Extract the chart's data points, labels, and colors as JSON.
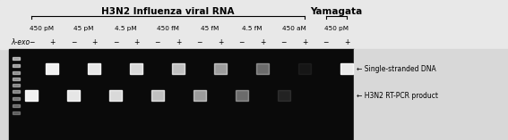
{
  "title_h3n2": "H3N2 Influenza viral RNA",
  "title_yamagata": "Yamagata",
  "concentrations_h3n2": [
    "450 pM",
    "45 pM",
    "4.5 pM",
    "450 fM",
    "45 fM",
    "4.5 fM",
    "450 aM"
  ],
  "concentrations_yamagata": [
    "450 pM"
  ],
  "lambda_exo_label": "λ-exo",
  "ann1": "← Single-stranded DNA",
  "ann2": "← H3N2 RT-PCR product",
  "fig_bg": "#d8d8d8",
  "gel_bg": "#0a0a0a",
  "header_bg": "#e8e8e8",
  "band_color_bright": "#ffffff",
  "pair_intensities_upper": [
    0.95,
    0.9,
    0.85,
    0.75,
    0.6,
    0.4,
    0.05,
    0.0
  ],
  "pair_intensities_lower": [
    0.95,
    0.9,
    0.85,
    0.75,
    0.6,
    0.4,
    0.1,
    0.0
  ],
  "yamagata_upper_intensity": 0.92,
  "yamagata_lower_intensity": 0.0,
  "ladder_alphas": [
    0.6,
    0.55,
    0.5,
    0.5,
    0.45,
    0.45,
    0.4,
    0.35,
    0.3
  ]
}
